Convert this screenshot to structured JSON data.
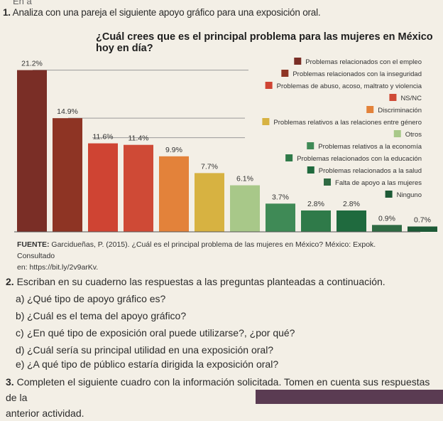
{
  "header_fragment": "En a",
  "question1": {
    "number": "1.",
    "text": "Analiza con una pareja el siguiente apoyo gráfico para una exposición oral."
  },
  "chart_data": {
    "type": "bar",
    "title": "¿Cuál crees que es el principal problema para las mujeres en México hoy en día?",
    "categories": [
      "Problemas relacionados con el empleo",
      "Problemas relacionados con la inseguridad",
      "Problemas de abuso, acoso, maltrato y violencia",
      "NS/NC",
      "Discriminación",
      "Problemas relativos a las relaciones entre género",
      "Otros",
      "Problemas relativos a la economía",
      "Problemas relacionados con la educación",
      "Problemas relacionados a la salud",
      "Falta de apoyo a las mujeres",
      "Ninguno"
    ],
    "values": [
      21.2,
      14.9,
      11.6,
      11.4,
      9.9,
      7.7,
      6.1,
      3.7,
      2.8,
      2.8,
      0.9,
      0.7
    ],
    "value_labels": [
      "21.2%",
      "14.9%",
      "11.6%",
      "11.4%",
      "9.9%",
      "7.7%",
      "6.1%",
      "3.7%",
      "2.8%",
      "2.8%",
      "0.9%",
      "0.7%"
    ],
    "colors": [
      "#7a2e26",
      "#8e3424",
      "#cf4433",
      "#cf4a36",
      "#e3823a",
      "#d7b241",
      "#a8c889",
      "#3f8a56",
      "#2f7a49",
      "#1f6a3e",
      "#2f6a43",
      "#1d5a36"
    ],
    "ylim": [
      0,
      22
    ],
    "xlabel": "",
    "ylabel": "",
    "legend_position": "right"
  },
  "source": {
    "label": "FUENTE:",
    "text": "Garcidueñas, P. (2015). ¿Cuál es el principal problema de las mujeres en México? México: Expok. Consultado",
    "line2": "en: https://bit.ly/2v9arKv."
  },
  "question2": {
    "number": "2.",
    "text": "Escriban en su cuaderno las respuestas a las preguntas planteadas a continuación.",
    "items": [
      {
        "letter": "a)",
        "text": "¿Qué tipo de apoyo gráfico es?"
      },
      {
        "letter": "b)",
        "text": "¿Cuál es el tema del apoyo gráfico?"
      },
      {
        "letter": "c)",
        "text": "¿En qué tipo de exposición oral puede utilizarse?, ¿por qué?"
      },
      {
        "letter": "d)",
        "text": "¿Cuál sería su principal utilidad en una exposición oral?"
      },
      {
        "letter": "e)",
        "text": "¿A qué tipo de público estaría dirigida la exposición oral?"
      }
    ]
  },
  "question3": {
    "number": "3.",
    "text": "Completen el siguiente cuadro con la información solicitada. Tomen en cuenta sus respuestas de la",
    "line2": "anterior actividad."
  }
}
